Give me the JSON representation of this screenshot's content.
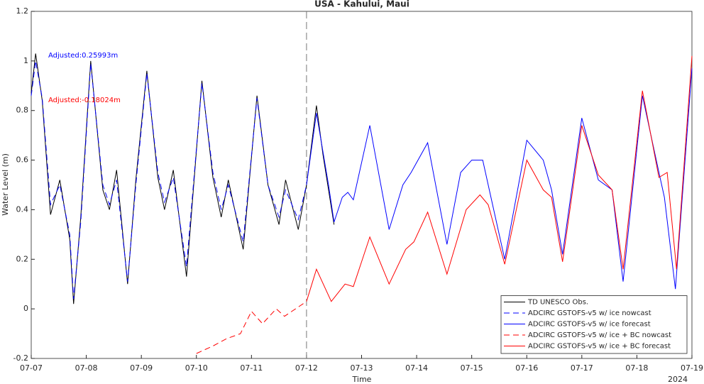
{
  "chart_data": {
    "type": "line",
    "title": "USA - Kahului, Maui",
    "x_label": "Time",
    "y_label": "Water Level (m)",
    "x_year_label": "2024",
    "xlim": [
      0,
      12
    ],
    "ylim": [
      -0.2,
      1.2
    ],
    "xticks": [
      {
        "value": 0,
        "label": "07-07"
      },
      {
        "value": 1,
        "label": "07-08"
      },
      {
        "value": 2,
        "label": "07-09"
      },
      {
        "value": 3,
        "label": "07-10"
      },
      {
        "value": 4,
        "label": "07-11"
      },
      {
        "value": 5,
        "label": "07-12"
      },
      {
        "value": 6,
        "label": "07-13"
      },
      {
        "value": 7,
        "label": "07-14"
      },
      {
        "value": 8,
        "label": "07-15"
      },
      {
        "value": 9,
        "label": "07-16"
      },
      {
        "value": 10,
        "label": "07-17"
      },
      {
        "value": 11,
        "label": "07-18"
      },
      {
        "value": 12,
        "label": "07-19"
      }
    ],
    "yticks": [
      -0.2,
      0,
      0.2,
      0.4,
      0.6,
      0.8,
      1,
      1.2
    ],
    "vline_x": 5,
    "legend": "lower right",
    "annotations": [
      {
        "text": "Adjusted:0.25993m",
        "color": "#0000ff"
      },
      {
        "text": "Adjusted:-0.18024m",
        "color": "#ff0000"
      }
    ],
    "series": [
      {
        "name": "TD UNESCO Obs.",
        "color": "#000000",
        "dashed": false,
        "x": [
          0,
          0.08,
          0.2,
          0.35,
          0.52,
          0.7,
          0.77,
          0.9,
          1.08,
          1.3,
          1.42,
          1.55,
          1.75,
          1.9,
          2.1,
          2.3,
          2.42,
          2.58,
          2.82,
          3.1,
          3.3,
          3.45,
          3.58,
          3.85,
          4.1,
          4.3,
          4.5,
          4.62,
          4.85,
          5.0,
          5.18,
          5.3,
          5.5
        ],
        "values": [
          0.87,
          1.03,
          0.84,
          0.38,
          0.52,
          0.28,
          0.02,
          0.37,
          1.0,
          0.48,
          0.4,
          0.56,
          0.1,
          0.52,
          0.96,
          0.53,
          0.4,
          0.56,
          0.13,
          0.92,
          0.53,
          0.37,
          0.52,
          0.24,
          0.86,
          0.5,
          0.34,
          0.52,
          0.32,
          0.5,
          0.82,
          0.62,
          0.34
        ]
      },
      {
        "name": "ADCIRC GSTOFS-v5 w/ ice nowcast",
        "color": "#0000ff",
        "dashed": true,
        "x": [
          0,
          0.08,
          0.2,
          0.35,
          0.52,
          0.7,
          0.77,
          0.9,
          1.08,
          1.3,
          1.42,
          1.55,
          1.75,
          1.9,
          2.1,
          2.3,
          2.42,
          2.58,
          2.82,
          3.1,
          3.3,
          3.45,
          3.58,
          3.85,
          4.1,
          4.3,
          4.5,
          4.62,
          4.85,
          5.0
        ],
        "values": [
          0.86,
          1.0,
          0.85,
          0.42,
          0.5,
          0.3,
          0.04,
          0.35,
          0.99,
          0.5,
          0.42,
          0.52,
          0.11,
          0.5,
          0.95,
          0.55,
          0.43,
          0.53,
          0.17,
          0.91,
          0.55,
          0.4,
          0.5,
          0.27,
          0.85,
          0.5,
          0.37,
          0.48,
          0.36,
          0.5
        ]
      },
      {
        "name": "ADCIRC GSTOFS-v5 w/ ice forecast",
        "color": "#0000ff",
        "dashed": false,
        "x": [
          5.0,
          5.18,
          5.4,
          5.5,
          5.65,
          5.75,
          5.85,
          6.15,
          6.5,
          6.75,
          6.9,
          7.2,
          7.55,
          7.8,
          8.0,
          8.2,
          8.35,
          8.6,
          9.0,
          9.3,
          9.45,
          9.65,
          10.0,
          10.3,
          10.55,
          10.75,
          11.1,
          11.4,
          11.5,
          11.7,
          12.0
        ],
        "values": [
          0.5,
          0.79,
          0.5,
          0.35,
          0.45,
          0.47,
          0.44,
          0.74,
          0.32,
          0.5,
          0.55,
          0.67,
          0.26,
          0.55,
          0.6,
          0.6,
          0.45,
          0.2,
          0.68,
          0.6,
          0.48,
          0.22,
          0.77,
          0.52,
          0.48,
          0.11,
          0.86,
          0.55,
          0.45,
          0.08,
          0.97
        ]
      },
      {
        "name": "ADCIRC GSTOFS-v5 w/ ice + BC nowcast",
        "color": "#ff0000",
        "dashed": true,
        "x": [
          3.0,
          3.3,
          3.55,
          3.8,
          4.0,
          4.2,
          4.45,
          4.6,
          5.0
        ],
        "values": [
          -0.18,
          -0.15,
          -0.12,
          -0.1,
          -0.01,
          -0.06,
          0.0,
          -0.03,
          0.03
        ]
      },
      {
        "name": "ADCIRC GSTOFS-v5 w/ ice + BC forecast",
        "color": "#ff0000",
        "dashed": false,
        "x": [
          5.0,
          5.18,
          5.45,
          5.7,
          5.85,
          6.15,
          6.5,
          6.8,
          6.95,
          7.2,
          7.55,
          7.9,
          8.15,
          8.3,
          8.6,
          9.0,
          9.3,
          9.45,
          9.65,
          10.0,
          10.3,
          10.55,
          10.75,
          11.1,
          11.4,
          11.55,
          11.72,
          12.0
        ],
        "values": [
          0.03,
          0.16,
          0.03,
          0.1,
          0.09,
          0.29,
          0.1,
          0.24,
          0.27,
          0.39,
          0.14,
          0.4,
          0.46,
          0.42,
          0.18,
          0.6,
          0.48,
          0.45,
          0.19,
          0.74,
          0.54,
          0.48,
          0.16,
          0.88,
          0.53,
          0.55,
          0.16,
          1.02
        ]
      }
    ]
  }
}
